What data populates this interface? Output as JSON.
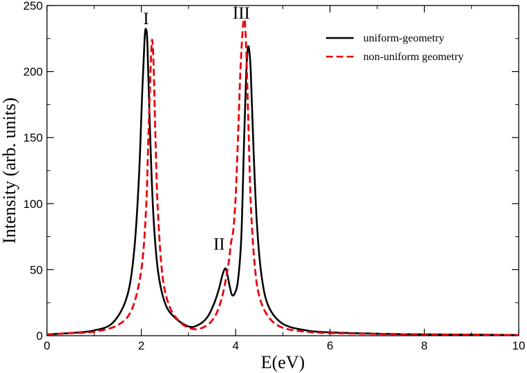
{
  "chart_data": {
    "type": "line",
    "xlabel": "E(eV)",
    "ylabel": "Intensity (arb. units)",
    "xlim": [
      0,
      10
    ],
    "ylim": [
      0,
      250
    ],
    "xticks": [
      0,
      2,
      4,
      6,
      8,
      10
    ],
    "xtick_labels": [
      "0",
      "2",
      "4",
      "6",
      "8",
      "10"
    ],
    "yticks": [
      0,
      50,
      100,
      150,
      200,
      250
    ],
    "ytick_labels": [
      "0",
      "50",
      "100",
      "150",
      "200",
      "250"
    ],
    "grid": false,
    "legend_position": "top-right",
    "series": [
      {
        "name": "uniform-geometry",
        "color": "#000000",
        "style": "solid",
        "x": [
          0,
          0.5,
          1.0,
          1.4,
          1.7,
          1.85,
          1.95,
          2.02,
          2.07,
          2.1,
          2.13,
          2.18,
          2.25,
          2.35,
          2.5,
          2.7,
          3.0,
          3.2,
          3.4,
          3.55,
          3.65,
          3.72,
          3.78,
          3.82,
          3.87,
          3.92,
          3.98,
          4.05,
          4.12,
          4.18,
          4.22,
          4.25,
          4.28,
          4.32,
          4.38,
          4.45,
          4.55,
          4.7,
          5.0,
          5.5,
          6.0,
          7.0,
          8.0,
          9.0,
          10.0
        ],
        "y": [
          1,
          2,
          4,
          10,
          30,
          65,
          120,
          185,
          225,
          232,
          220,
          160,
          95,
          50,
          25,
          14,
          7,
          8,
          14,
          25,
          36,
          46,
          51,
          47,
          38,
          31,
          32,
          42,
          75,
          150,
          195,
          215,
          218,
          200,
          140,
          85,
          45,
          22,
          9,
          4,
          2.5,
          1.5,
          1,
          0.8,
          0.5
        ]
      },
      {
        "name": "non-uniform geometry",
        "color": "#e8000b",
        "style": "dashed",
        "x": [
          0,
          0.5,
          1.0,
          1.5,
          1.8,
          2.0,
          2.1,
          2.15,
          2.2,
          2.23,
          2.26,
          2.3,
          2.35,
          2.45,
          2.6,
          2.8,
          3.0,
          3.2,
          3.4,
          3.55,
          3.65,
          3.75,
          3.85,
          3.9,
          3.95,
          4.0,
          4.05,
          4.1,
          4.15,
          4.18,
          4.2,
          4.23,
          4.27,
          4.32,
          4.4,
          4.5,
          4.7,
          5.0,
          5.5,
          6.0,
          7.0,
          8.0,
          9.0,
          10.0
        ],
        "y": [
          1,
          2,
          3,
          8,
          20,
          50,
          95,
          150,
          205,
          224,
          205,
          150,
          95,
          45,
          22,
          11,
          6,
          5,
          8,
          14,
          22,
          35,
          55,
          70,
          80,
          105,
          150,
          200,
          232,
          239,
          236,
          210,
          160,
          100,
          55,
          30,
          14,
          6,
          3,
          2,
          1.3,
          1,
          0.8,
          0.5
        ]
      }
    ],
    "annotations": [
      {
        "text": "I",
        "x": 2.1,
        "y": 236
      },
      {
        "text": "II",
        "x": 3.65,
        "y": 65
      },
      {
        "text": "III",
        "x": 4.12,
        "y": 240
      }
    ]
  }
}
